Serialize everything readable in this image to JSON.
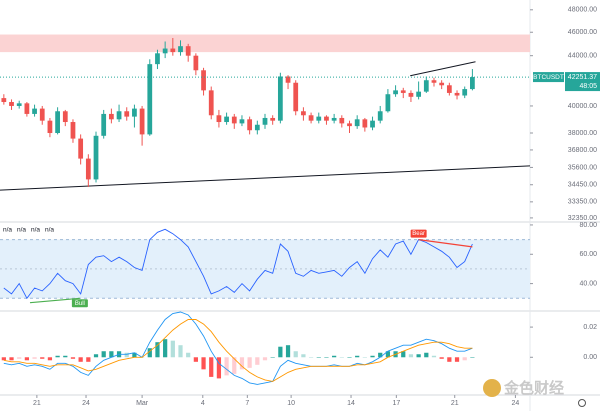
{
  "chart_data": [
    {
      "type": "candlestick",
      "name": "BTCUSDT",
      "countdown": "48:05",
      "open": [
        40600,
        40300,
        40000,
        40200,
        39400,
        39800,
        38900,
        38000,
        39600,
        38800,
        37600,
        36200,
        34800,
        37800,
        39400,
        39000,
        39600,
        39200,
        39800,
        37900,
        43300,
        44200,
        44600,
        44300,
        44800,
        44000,
        42800,
        41200,
        39300,
        38800,
        39200,
        38700,
        39000,
        38200,
        38600,
        39100,
        38900,
        42300,
        41800,
        39600,
        39300,
        38900,
        39200,
        38900,
        39100,
        38700,
        38500,
        39000,
        38400,
        38900,
        39600,
        40900,
        41200,
        41000,
        40700,
        41100,
        42000,
        41800,
        41600,
        41000,
        40800,
        41300
      ],
      "high": [
        40900,
        40500,
        40400,
        40300,
        40100,
        40000,
        39100,
        39900,
        39700,
        39000,
        37900,
        36500,
        38100,
        39700,
        39800,
        40100,
        39900,
        40100,
        40000,
        43700,
        44500,
        45200,
        45500,
        45300,
        45000,
        44200,
        43000,
        41500,
        39700,
        39500,
        39400,
        39300,
        39200,
        38900,
        39400,
        39300,
        42600,
        42400,
        42000,
        39900,
        39500,
        39500,
        39300,
        39400,
        39300,
        38900,
        39300,
        39100,
        39200,
        40000,
        41300,
        41600,
        41400,
        41200,
        41900,
        42300,
        42200,
        42000,
        41800,
        41200,
        41500,
        42900
      ],
      "low": [
        40100,
        39700,
        39800,
        39200,
        39200,
        38600,
        37700,
        37900,
        38500,
        37300,
        35800,
        34300,
        34600,
        37600,
        38700,
        38800,
        38900,
        38400,
        37100,
        37800,
        42900,
        43800,
        44000,
        44000,
        43500,
        42400,
        40800,
        39000,
        38400,
        38600,
        38300,
        38500,
        37900,
        37900,
        38300,
        38600,
        38700,
        41300,
        39300,
        38900,
        38700,
        38700,
        38600,
        38700,
        38400,
        38000,
        38300,
        38100,
        38200,
        38700,
        39500,
        40700,
        40600,
        40300,
        40500,
        41000,
        41500,
        41300,
        40800,
        40500,
        40600,
        41200
      ],
      "close": [
        40300,
        40000,
        40200,
        39400,
        39800,
        38900,
        38000,
        39600,
        38800,
        37600,
        36200,
        34800,
        37800,
        39400,
        39000,
        39600,
        39200,
        39800,
        37900,
        43300,
        44200,
        44600,
        44300,
        44800,
        44000,
        42800,
        41200,
        39300,
        38800,
        39200,
        38700,
        39000,
        38200,
        38600,
        39100,
        38900,
        42300,
        41800,
        39600,
        39300,
        38900,
        39200,
        38900,
        39100,
        38700,
        38500,
        39000,
        38400,
        38900,
        39600,
        40900,
        41200,
        41000,
        40700,
        41100,
        42000,
        41800,
        41600,
        41000,
        40800,
        41300,
        42251.37
      ],
      "up_color": "#26a69a",
      "down_color": "#ef5350",
      "xlim": [
        -0.5,
        68.5
      ],
      "xticks": [
        {
          "value": 4.3,
          "label": "21"
        },
        {
          "value": 10.7,
          "label": "24"
        },
        {
          "value": 18,
          "label": "Mar"
        },
        {
          "value": 25.9,
          "label": "4"
        },
        {
          "value": 31.7,
          "label": "7"
        },
        {
          "value": 37.4,
          "label": "10"
        },
        {
          "value": 45.2,
          "label": "14"
        },
        {
          "value": 51.1,
          "label": "17"
        },
        {
          "value": 58.7,
          "label": "21"
        },
        {
          "value": 66.6,
          "label": "24"
        }
      ],
      "ylim": [
        32100,
        48900
      ],
      "log_scale": true,
      "yticks": [
        {
          "value": 48000,
          "label": "48000.00"
        },
        {
          "value": 46000,
          "label": "46000.00"
        },
        {
          "value": 44000,
          "label": "44000.00"
        },
        {
          "value": 40000,
          "label": "40000.00"
        },
        {
          "value": 38000,
          "label": "38000.00"
        },
        {
          "value": 36800,
          "label": "36800.00"
        },
        {
          "value": 35600,
          "label": "35600.00"
        },
        {
          "value": 34450,
          "label": "34450.00"
        },
        {
          "value": 33350,
          "label": "33350.00"
        },
        {
          "value": 32350,
          "label": "32350.00"
        }
      ],
      "zone": [
        44300,
        45800
      ],
      "zone_color": "#fbd3d3",
      "trend_lines": [
        {
          "x": [
            -0.5,
            68.5
          ],
          "y": [
            34100,
            35700
          ]
        },
        {
          "x": [
            52.9,
            61.4
          ],
          "y": [
            42350,
            43500
          ]
        }
      ]
    },
    {
      "type": "rsi",
      "status": [
        "n/a",
        "n/a",
        "n/a",
        "n/a"
      ],
      "values": [
        37,
        33,
        40,
        30,
        37,
        35,
        40,
        47,
        42,
        40,
        33,
        53,
        58,
        59,
        55,
        58,
        55,
        51,
        49,
        70,
        75,
        77,
        74,
        70,
        65,
        55,
        45,
        33,
        35,
        38,
        34,
        40,
        35,
        43,
        49,
        47,
        67,
        62,
        47,
        45,
        49,
        47,
        48,
        49,
        45,
        51,
        55,
        47,
        57,
        63,
        58,
        67,
        69,
        60,
        70,
        68,
        65,
        62,
        58,
        51,
        55,
        67
      ],
      "color": "#2962ff",
      "band": [
        30,
        70
      ],
      "band_color": "#e3f0fb",
      "midline": 50,
      "ylim": [
        22,
        82
      ],
      "yticks": [
        {
          "value": 80,
          "label": "80.00"
        },
        {
          "value": 60,
          "label": "60.00"
        },
        {
          "value": 40,
          "label": "40.00"
        }
      ],
      "divergences": [
        {
          "label": "Bull",
          "color": "#4caf50",
          "x": [
            3.4,
            9.9
          ],
          "y": [
            27,
            30
          ]
        },
        {
          "label": "Bear",
          "color": "#f44336",
          "x": [
            54,
            61
          ],
          "y": [
            70,
            65
          ]
        }
      ]
    },
    {
      "type": "macd",
      "series": [
        {
          "color": "#2196f3",
          "values": [
            -0.004,
            -0.005,
            -0.004,
            -0.006,
            -0.005,
            -0.006,
            -0.008,
            -0.004,
            -0.004,
            -0.006,
            -0.01,
            -0.012,
            -0.006,
            -0.002,
            0,
            0.002,
            0.002,
            0.003,
            0,
            0.01,
            0.018,
            0.025,
            0.029,
            0.03,
            0.028,
            0.022,
            0.014,
            0.004,
            -0.004,
            -0.008,
            -0.012,
            -0.014,
            -0.017,
            -0.018,
            -0.017,
            -0.016,
            -0.006,
            -0.002,
            -0.004,
            -0.005,
            -0.006,
            -0.006,
            -0.006,
            -0.005,
            -0.006,
            -0.006,
            -0.004,
            -0.005,
            -0.003,
            0,
            0.004,
            0.006,
            0.008,
            0.008,
            0.01,
            0.012,
            0.011,
            0.009,
            0.006,
            0.004,
            0.004,
            0.006
          ]
        },
        {
          "color": "#ff9800",
          "values": [
            -0.002,
            -0.003,
            -0.003,
            -0.004,
            -0.004,
            -0.005,
            -0.006,
            -0.005,
            -0.005,
            -0.005,
            -0.007,
            -0.009,
            -0.008,
            -0.006,
            -0.004,
            -0.002,
            -0.001,
            0,
            0,
            0.004,
            0.008,
            0.013,
            0.018,
            0.022,
            0.025,
            0.025,
            0.022,
            0.017,
            0.01,
            0.004,
            -0.001,
            -0.006,
            -0.01,
            -0.013,
            -0.015,
            -0.016,
            -0.013,
            -0.01,
            -0.008,
            -0.007,
            -0.006,
            -0.006,
            -0.006,
            -0.006,
            -0.006,
            -0.006,
            -0.005,
            -0.005,
            -0.004,
            -0.003,
            0,
            0.002,
            0.004,
            0.006,
            0.008,
            0.009,
            0.01,
            0.01,
            0.009,
            0.007,
            0.006,
            0.006
          ]
        }
      ],
      "histogram": [
        -0.002,
        -0.002,
        -0.001,
        -0.002,
        -0.001,
        -0.001,
        -0.002,
        0.001,
        0.001,
        -0.001,
        -0.003,
        -0.003,
        0.002,
        0.004,
        0.004,
        0.004,
        0.003,
        0.003,
        0,
        0.006,
        0.01,
        0.012,
        0.011,
        0.008,
        0.003,
        -0.003,
        -0.008,
        -0.013,
        -0.014,
        -0.012,
        -0.011,
        -0.008,
        -0.007,
        -0.005,
        -0.002,
        0,
        0.007,
        0.008,
        0.004,
        0.002,
        0,
        0,
        0,
        0.001,
        0,
        0,
        0.001,
        0,
        0.001,
        0.003,
        0.004,
        0.004,
        0.004,
        0.002,
        0.002,
        0.003,
        0.001,
        -0.001,
        -0.003,
        -0.003,
        -0.002,
        0
      ],
      "histogram_colors": [
        "#26a69a",
        "#b2dfdb",
        "#ff5252",
        "#ffcdd2"
      ],
      "ylim": [
        -0.025,
        0.03
      ],
      "yticks": [
        0.02,
        {
          "value": 0,
          "label": "0.00"
        }
      ]
    }
  ],
  "watermark": "金色财经"
}
